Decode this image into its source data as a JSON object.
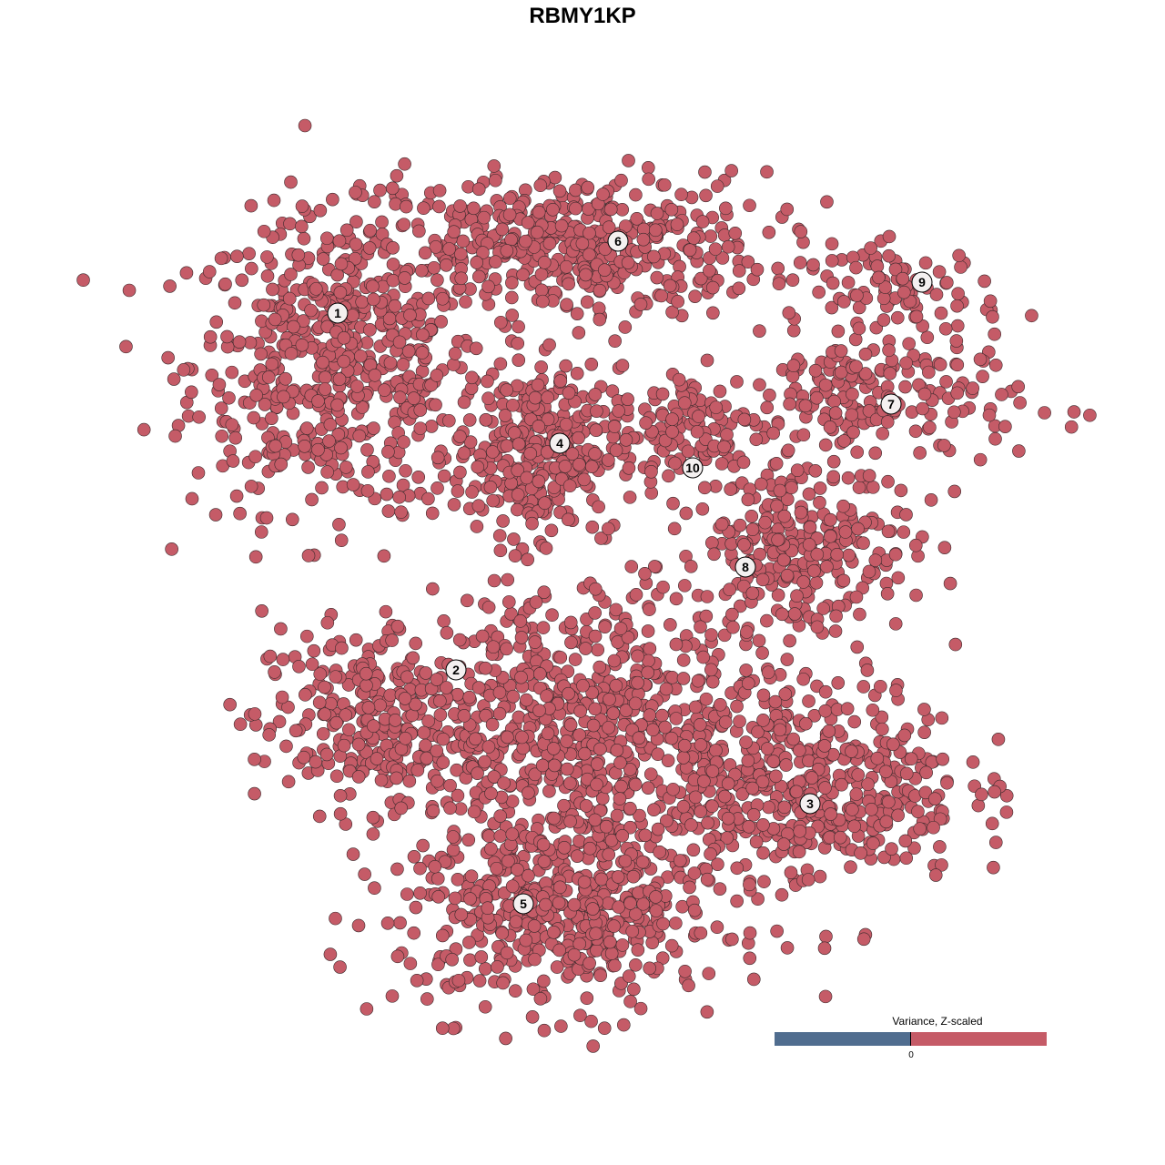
{
  "chart_data": {
    "type": "scatter",
    "title": "RBMY1KP",
    "xlabel": "",
    "ylabel": "",
    "grid": false,
    "axes_visible": false,
    "point_color": "#c55b67",
    "point_stroke": "#3b2a2c",
    "clusters": [
      {
        "label": "1",
        "centroid": [
          -26.9,
          29.6
        ],
        "components": [
          {
            "center": [
              -27,
              24
            ],
            "spread": [
              8,
              8
            ],
            "n": 560
          }
        ]
      },
      {
        "label": "6",
        "centroid": [
          3.9,
          37.5
        ],
        "components": [
          {
            "center": [
              -2,
              37
            ],
            "spread": [
              11,
              4
            ],
            "n": 480
          }
        ]
      },
      {
        "label": "9",
        "centroid": [
          37.3,
          33
        ],
        "components": [
          {
            "center": [
              35,
              32
            ],
            "spread": [
              5.5,
              2.5
            ],
            "n": 90
          }
        ]
      },
      {
        "label": "7",
        "centroid": [
          33.9,
          19.6
        ],
        "components": [
          {
            "center": [
              32,
              20
            ],
            "spread": [
              8,
              4
            ],
            "n": 200
          }
        ]
      },
      {
        "label": "4",
        "centroid": [
          -2.5,
          15.3
        ],
        "components": [
          {
            "center": [
              -5,
              14.5
            ],
            "spread": [
              4.5,
              4.5
            ],
            "n": 330
          }
        ]
      },
      {
        "label": "10",
        "centroid": [
          12.1,
          12.6
        ],
        "components": [
          {
            "center": [
              12,
              17
            ],
            "spread": [
              4,
              3.5
            ],
            "n": 110
          }
        ]
      },
      {
        "label": "8",
        "centroid": [
          17.9,
          1.7
        ],
        "components": [
          {
            "center": [
              24,
              4
            ],
            "spread": [
              6,
              5
            ],
            "n": 260
          }
        ]
      },
      {
        "label": "2",
        "centroid": [
          -13.9,
          -9.6
        ],
        "components": [
          {
            "center": [
              -24,
              -15
            ],
            "spread": [
              6,
              5
            ],
            "n": 260
          }
        ]
      },
      {
        "label": "3",
        "centroid": [
          25,
          -24.3
        ],
        "components": [
          {
            "center": [
              26,
              -22
            ],
            "spread": [
              8,
              5.5
            ],
            "n": 420
          }
        ]
      },
      {
        "label": "5",
        "centroid": [
          -6.5,
          -35.3
        ],
        "components": [
          {
            "center": [
              -2,
              -36
            ],
            "spread": [
              9,
              5.5
            ],
            "n": 520
          },
          {
            "center": [
              1,
              -16
            ],
            "spread": [
              10,
              8
            ],
            "n": 700
          }
        ]
      }
    ],
    "legend": {
      "title": "Variance, Z-scaled",
      "tick": "0",
      "low_color": "#506d8f",
      "high_color": "#c55b67",
      "placement": "bottom-right"
    }
  }
}
